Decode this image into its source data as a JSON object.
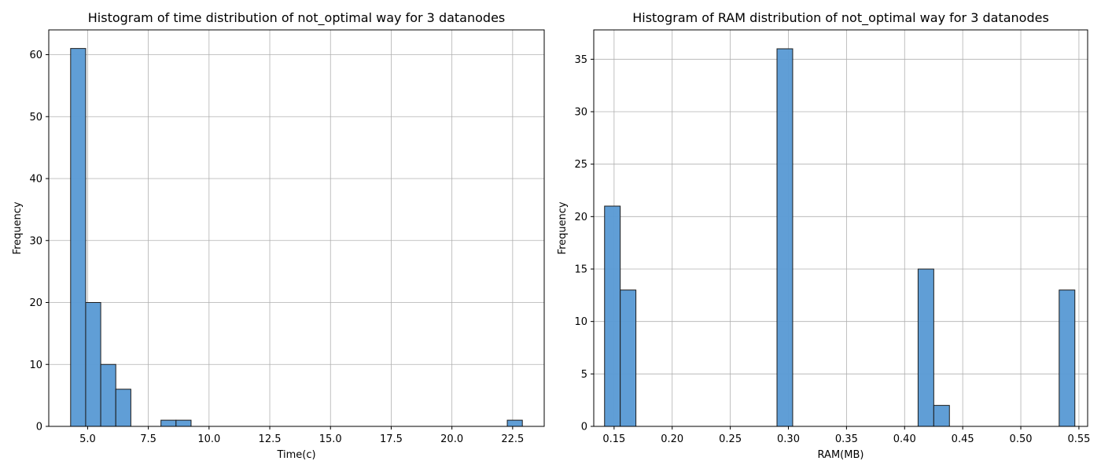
{
  "chart_data": [
    {
      "type": "bar",
      "title": "Histogram of time distribution of not_optimal way for 3 datanodes",
      "xlabel": "Time(c)",
      "ylabel": "Frequency",
      "xlim": [
        3.4,
        23.8
      ],
      "ylim": [
        0,
        64
      ],
      "xticks": [
        5.0,
        7.5,
        10.0,
        12.5,
        15.0,
        17.5,
        20.0,
        22.5
      ],
      "xtick_labels": [
        "5.0",
        "7.5",
        "10.0",
        "12.5",
        "15.0",
        "17.5",
        "20.0",
        "22.5"
      ],
      "yticks": [
        0,
        10,
        20,
        30,
        40,
        50,
        60
      ],
      "ytick_labels": [
        "0",
        "10",
        "20",
        "30",
        "40",
        "50",
        "60"
      ],
      "grid": true,
      "bin_start": 4.3,
      "bin_width": 0.62,
      "counts": [
        61,
        20,
        10,
        6,
        0,
        0,
        1,
        1,
        0,
        0,
        0,
        0,
        0,
        0,
        0,
        0,
        0,
        0,
        0,
        0,
        0,
        0,
        0,
        0,
        0,
        0,
        0,
        0,
        0,
        1
      ],
      "colors": {
        "bar": "#5b9bd5",
        "edge": "#1c1c1c",
        "grid": "#b0b0b0",
        "axis": "#000000"
      }
    },
    {
      "type": "bar",
      "title": "Histogram of RAM distribution of not_optimal way for 3 datanodes",
      "xlabel": "RAM(MB)",
      "ylabel": "Frequency",
      "xlim": [
        0.1325,
        0.5575
      ],
      "ylim": [
        0,
        37.8
      ],
      "xticks": [
        0.15,
        0.2,
        0.25,
        0.3,
        0.35,
        0.4,
        0.45,
        0.5,
        0.55
      ],
      "xtick_labels": [
        "0.15",
        "0.20",
        "0.25",
        "0.30",
        "0.35",
        "0.40",
        "0.45",
        "0.50",
        "0.55"
      ],
      "yticks": [
        0,
        5,
        10,
        15,
        20,
        25,
        30,
        35
      ],
      "ytick_labels": [
        "0",
        "5",
        "10",
        "15",
        "20",
        "25",
        "30",
        "35"
      ],
      "grid": true,
      "bin_start": 0.1418,
      "bin_width": 0.01349,
      "counts": [
        21,
        13,
        0,
        0,
        0,
        0,
        0,
        0,
        0,
        0,
        0,
        36,
        0,
        0,
        0,
        0,
        0,
        0,
        0,
        0,
        15,
        2,
        0,
        0,
        0,
        0,
        0,
        0,
        0,
        13
      ],
      "colors": {
        "bar": "#5b9bd5",
        "edge": "#1c1c1c",
        "grid": "#b0b0b0",
        "axis": "#000000"
      }
    }
  ]
}
